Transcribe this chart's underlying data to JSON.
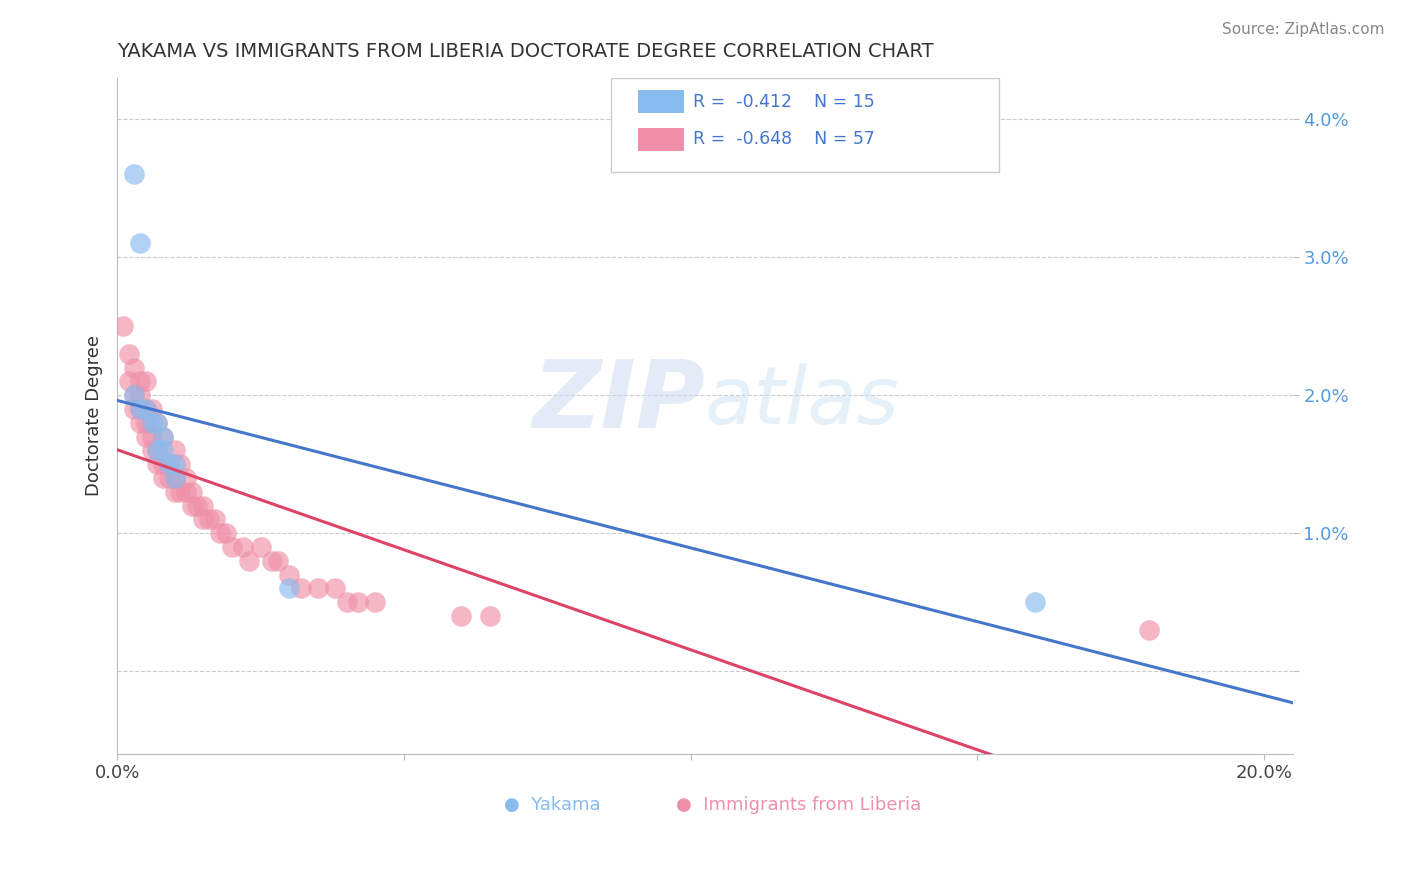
{
  "title": "YAKAMA VS IMMIGRANTS FROM LIBERIA DOCTORATE DEGREE CORRELATION CHART",
  "source": "Source: ZipAtlas.com",
  "ylabel": "Doctorate Degree",
  "watermark_zip": "ZIP",
  "watermark_atlas": "atlas",
  "yakama_color": "#88bbee",
  "liberia_color": "#f090a8",
  "yakama_line_color": "#4477cc",
  "liberia_line_color": "#dd4466",
  "bg_color": "#ffffff",
  "grid_color": "#cccccc",
  "ytick_color": "#5599dd",
  "title_color": "#333333",
  "legend_text_color": "#4477cc",
  "legend_bg": "#ffffff",
  "legend_border": "#cccccc",
  "yakama_points": [
    [
      0.003,
      0.036
    ],
    [
      0.004,
      0.031
    ],
    [
      0.003,
      0.02
    ],
    [
      0.004,
      0.019
    ],
    [
      0.005,
      0.019
    ],
    [
      0.006,
      0.018
    ],
    [
      0.007,
      0.018
    ],
    [
      0.007,
      0.016
    ],
    [
      0.008,
      0.017
    ],
    [
      0.008,
      0.016
    ],
    [
      0.009,
      0.015
    ],
    [
      0.01,
      0.015
    ],
    [
      0.01,
      0.014
    ],
    [
      0.03,
      0.006
    ],
    [
      0.16,
      0.005
    ]
  ],
  "liberia_points": [
    [
      0.001,
      0.025
    ],
    [
      0.002,
      0.023
    ],
    [
      0.002,
      0.021
    ],
    [
      0.003,
      0.022
    ],
    [
      0.003,
      0.02
    ],
    [
      0.003,
      0.019
    ],
    [
      0.004,
      0.021
    ],
    [
      0.004,
      0.02
    ],
    [
      0.004,
      0.019
    ],
    [
      0.004,
      0.018
    ],
    [
      0.005,
      0.021
    ],
    [
      0.005,
      0.019
    ],
    [
      0.005,
      0.018
    ],
    [
      0.005,
      0.017
    ],
    [
      0.006,
      0.019
    ],
    [
      0.006,
      0.017
    ],
    [
      0.006,
      0.016
    ],
    [
      0.007,
      0.018
    ],
    [
      0.007,
      0.016
    ],
    [
      0.007,
      0.015
    ],
    [
      0.008,
      0.017
    ],
    [
      0.008,
      0.015
    ],
    [
      0.008,
      0.014
    ],
    [
      0.009,
      0.015
    ],
    [
      0.009,
      0.014
    ],
    [
      0.01,
      0.016
    ],
    [
      0.01,
      0.014
    ],
    [
      0.01,
      0.013
    ],
    [
      0.011,
      0.015
    ],
    [
      0.011,
      0.013
    ],
    [
      0.012,
      0.014
    ],
    [
      0.012,
      0.013
    ],
    [
      0.013,
      0.013
    ],
    [
      0.013,
      0.012
    ],
    [
      0.014,
      0.012
    ],
    [
      0.015,
      0.012
    ],
    [
      0.015,
      0.011
    ],
    [
      0.016,
      0.011
    ],
    [
      0.017,
      0.011
    ],
    [
      0.018,
      0.01
    ],
    [
      0.019,
      0.01
    ],
    [
      0.02,
      0.009
    ],
    [
      0.022,
      0.009
    ],
    [
      0.023,
      0.008
    ],
    [
      0.025,
      0.009
    ],
    [
      0.027,
      0.008
    ],
    [
      0.028,
      0.008
    ],
    [
      0.03,
      0.007
    ],
    [
      0.032,
      0.006
    ],
    [
      0.035,
      0.006
    ],
    [
      0.038,
      0.006
    ],
    [
      0.04,
      0.005
    ],
    [
      0.042,
      0.005
    ],
    [
      0.045,
      0.005
    ],
    [
      0.06,
      0.004
    ],
    [
      0.065,
      0.004
    ],
    [
      0.18,
      0.003
    ]
  ],
  "xlim": [
    0.0,
    0.205
  ],
  "ylim": [
    -0.006,
    0.043
  ],
  "yticks": [
    0.0,
    0.01,
    0.02,
    0.03,
    0.04
  ],
  "ytick_labels": [
    "",
    "1.0%",
    "2.0%",
    "3.0%",
    "4.0%"
  ],
  "xticks": [
    0.0,
    0.05,
    0.1,
    0.15,
    0.2
  ],
  "xtick_labels": [
    "0.0%",
    "",
    "",
    "",
    "20.0%"
  ]
}
